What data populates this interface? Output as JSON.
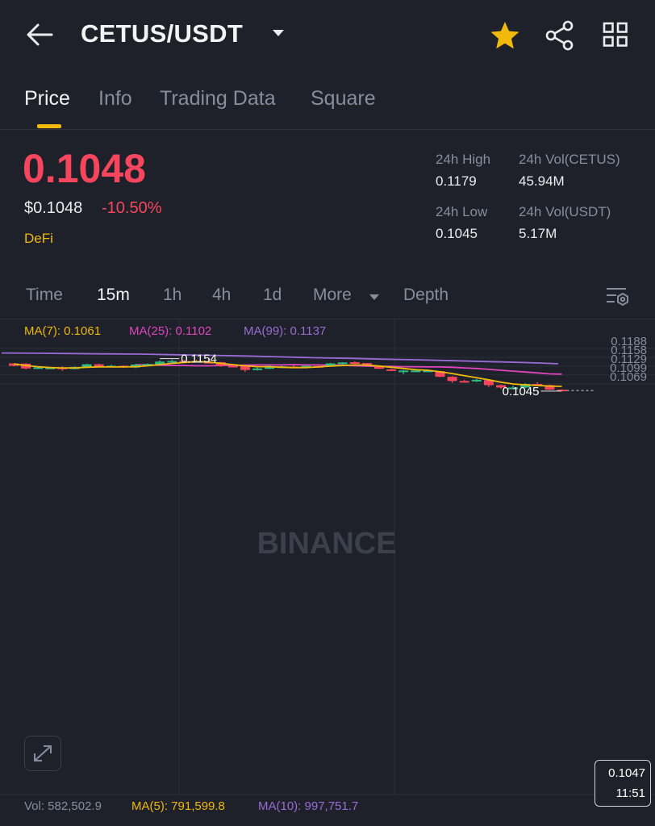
{
  "header": {
    "title": "CETUS/USDT",
    "icons": {
      "back": "back-arrow-icon",
      "dropdown": "caret-down-icon",
      "favorite": "star-icon",
      "share": "share-icon",
      "menu": "grid-icon"
    },
    "favorite_color": "#f0b90b"
  },
  "tabs": [
    {
      "label": "Price",
      "active": true
    },
    {
      "label": "Info",
      "active": false
    },
    {
      "label": "Trading Data",
      "active": false
    },
    {
      "label": "Square",
      "active": false
    }
  ],
  "price": {
    "last": "0.1048",
    "usd": "$0.1048",
    "change": "-10.50%",
    "category": "DeFi",
    "down_color": "#f6465d",
    "up_color": "#2ebd85"
  },
  "stats": {
    "high_label": "24h High",
    "high_value": "0.1179",
    "low_label": "24h Low",
    "low_value": "0.1045",
    "vol_base_label": "24h Vol(CETUS)",
    "vol_base_value": "45.94M",
    "vol_quote_label": "24h Vol(USDT)",
    "vol_quote_value": "5.17M"
  },
  "intervals": {
    "items": [
      "Time",
      "15m",
      "1h",
      "4h",
      "1d"
    ],
    "active": "15m",
    "more": "More",
    "depth": "Depth"
  },
  "chart_data": {
    "type": "candlestick",
    "price_axis": [
      "0.1188",
      "0.1158",
      "0.1129",
      "0.1099",
      "0.1069"
    ],
    "ylim": [
      0.1036,
      0.1195
    ],
    "ma_legend": [
      {
        "label": "MA(7): 0.1061",
        "color": "#f0b90b"
      },
      {
        "label": "MA(25): 0.1102",
        "color": "#e045c0"
      },
      {
        "label": "MA(99): 0.1137",
        "color": "#9a6bd6"
      }
    ],
    "high_marker": "0.1154",
    "low_marker": "0.1045",
    "current_price": "0.1047",
    "countdown": "11:51",
    "watermark": "BINANCE",
    "candles": [
      [
        0.1138,
        0.1138,
        0.1128,
        0.113
      ],
      [
        0.1137,
        0.1139,
        0.1118,
        0.1121
      ],
      [
        0.1121,
        0.1128,
        0.1119,
        0.1125
      ],
      [
        0.1124,
        0.1126,
        0.112,
        0.1124
      ],
      [
        0.1124,
        0.1128,
        0.1113,
        0.1119
      ],
      [
        0.1119,
        0.1128,
        0.1118,
        0.1126
      ],
      [
        0.1126,
        0.1137,
        0.1125,
        0.1135
      ],
      [
        0.1135,
        0.1137,
        0.1126,
        0.1127
      ],
      [
        0.1127,
        0.1133,
        0.1126,
        0.113
      ],
      [
        0.113,
        0.1131,
        0.1123,
        0.1126
      ],
      [
        0.1124,
        0.1136,
        0.1122,
        0.1134
      ],
      [
        0.1134,
        0.1138,
        0.1132,
        0.1136
      ],
      [
        0.1133,
        0.1148,
        0.1132,
        0.1144
      ],
      [
        0.1145,
        0.115,
        0.1143,
        0.1146
      ],
      [
        0.1146,
        0.115,
        0.1143,
        0.1145
      ],
      [
        0.1146,
        0.115,
        0.1141,
        0.1143
      ],
      [
        0.1143,
        0.1154,
        0.1142,
        0.1142
      ],
      [
        0.1142,
        0.1143,
        0.1126,
        0.113
      ],
      [
        0.113,
        0.1132,
        0.1127,
        0.1129
      ],
      [
        0.113,
        0.1131,
        0.111,
        0.1116
      ],
      [
        0.1116,
        0.1124,
        0.1114,
        0.1121
      ],
      [
        0.112,
        0.1131,
        0.1119,
        0.1129
      ],
      [
        0.1127,
        0.113,
        0.1126,
        0.1128
      ],
      [
        0.1127,
        0.1132,
        0.1124,
        0.1124
      ],
      [
        0.1124,
        0.113,
        0.1122,
        0.113
      ],
      [
        0.1129,
        0.1131,
        0.1125,
        0.1127
      ],
      [
        0.1131,
        0.114,
        0.1129,
        0.1138
      ],
      [
        0.1136,
        0.1142,
        0.1135,
        0.1141
      ],
      [
        0.1142,
        0.1145,
        0.1138,
        0.114
      ],
      [
        0.1139,
        0.1139,
        0.113,
        0.1132
      ],
      [
        0.113,
        0.1131,
        0.1119,
        0.112
      ],
      [
        0.1118,
        0.112,
        0.1114,
        0.1115
      ],
      [
        0.1114,
        0.1116,
        0.1102,
        0.1114
      ],
      [
        0.1114,
        0.1116,
        0.1111,
        0.1114
      ],
      [
        0.1114,
        0.1117,
        0.1109,
        0.1114
      ],
      [
        0.1112,
        0.1113,
        0.1092,
        0.1093
      ],
      [
        0.1093,
        0.1095,
        0.1073,
        0.1079
      ],
      [
        0.1079,
        0.1083,
        0.1075,
        0.1078
      ],
      [
        0.1079,
        0.1086,
        0.1076,
        0.1083
      ],
      [
        0.1082,
        0.1082,
        0.1059,
        0.1065
      ],
      [
        0.1065,
        0.1067,
        0.1053,
        0.1057
      ],
      [
        0.1057,
        0.1063,
        0.1054,
        0.1057
      ],
      [
        0.1057,
        0.1072,
        0.1055,
        0.1069
      ],
      [
        0.1069,
        0.1075,
        0.1064,
        0.1065
      ],
      [
        0.1065,
        0.1067,
        0.1049,
        0.105
      ],
      [
        0.105,
        0.1051,
        0.1045,
        0.1047
      ]
    ],
    "ma7": [
      0.1136,
      0.1131,
      0.1127,
      0.1124,
      0.1123,
      0.1123,
      0.1125,
      0.1126,
      0.1126,
      0.1126,
      0.1127,
      0.113,
      0.1134,
      0.1138,
      0.1141,
      0.1144,
      0.1143,
      0.1138,
      0.1134,
      0.113,
      0.1127,
      0.1127,
      0.1125,
      0.1124,
      0.1124,
      0.1126,
      0.1129,
      0.1131,
      0.1133,
      0.1132,
      0.1129,
      0.1125,
      0.1121,
      0.1117,
      0.1115,
      0.111,
      0.1104,
      0.1097,
      0.109,
      0.1083,
      0.1075,
      0.1069,
      0.1066,
      0.1064,
      0.1062,
      0.1061
    ],
    "ma25": [
      0.1134,
      0.1133,
      0.1132,
      0.1131,
      0.1131,
      0.113,
      0.113,
      0.1131,
      0.1131,
      0.1132,
      0.1133,
      0.1133,
      0.1133,
      0.1134,
      0.1133,
      0.1133,
      0.1132,
      0.1132,
      0.113,
      0.1129,
      0.1128,
      0.1128,
      0.1127,
      0.1127,
      0.1126,
      0.1126,
      0.1125,
      0.1123,
      0.1121,
      0.1118,
      0.1115,
      0.1112,
      0.1109,
      0.1106,
      0.1103,
      0.1102
    ],
    "ma99": [
      0.1173,
      0.1172,
      0.1171,
      0.117,
      0.1169,
      0.1167,
      0.1165,
      0.1163,
      0.116,
      0.1157,
      0.1155,
      0.1152,
      0.115,
      0.1147,
      0.1144,
      0.1141,
      0.1137
    ],
    "volume_legend": [
      {
        "label": "Vol: 582,502.9",
        "color": "#848e9c"
      },
      {
        "label": "MA(5): 791,599.8",
        "color": "#f0b90b"
      },
      {
        "label": "MA(10): 997,751.7",
        "color": "#9a6bd6"
      }
    ]
  }
}
